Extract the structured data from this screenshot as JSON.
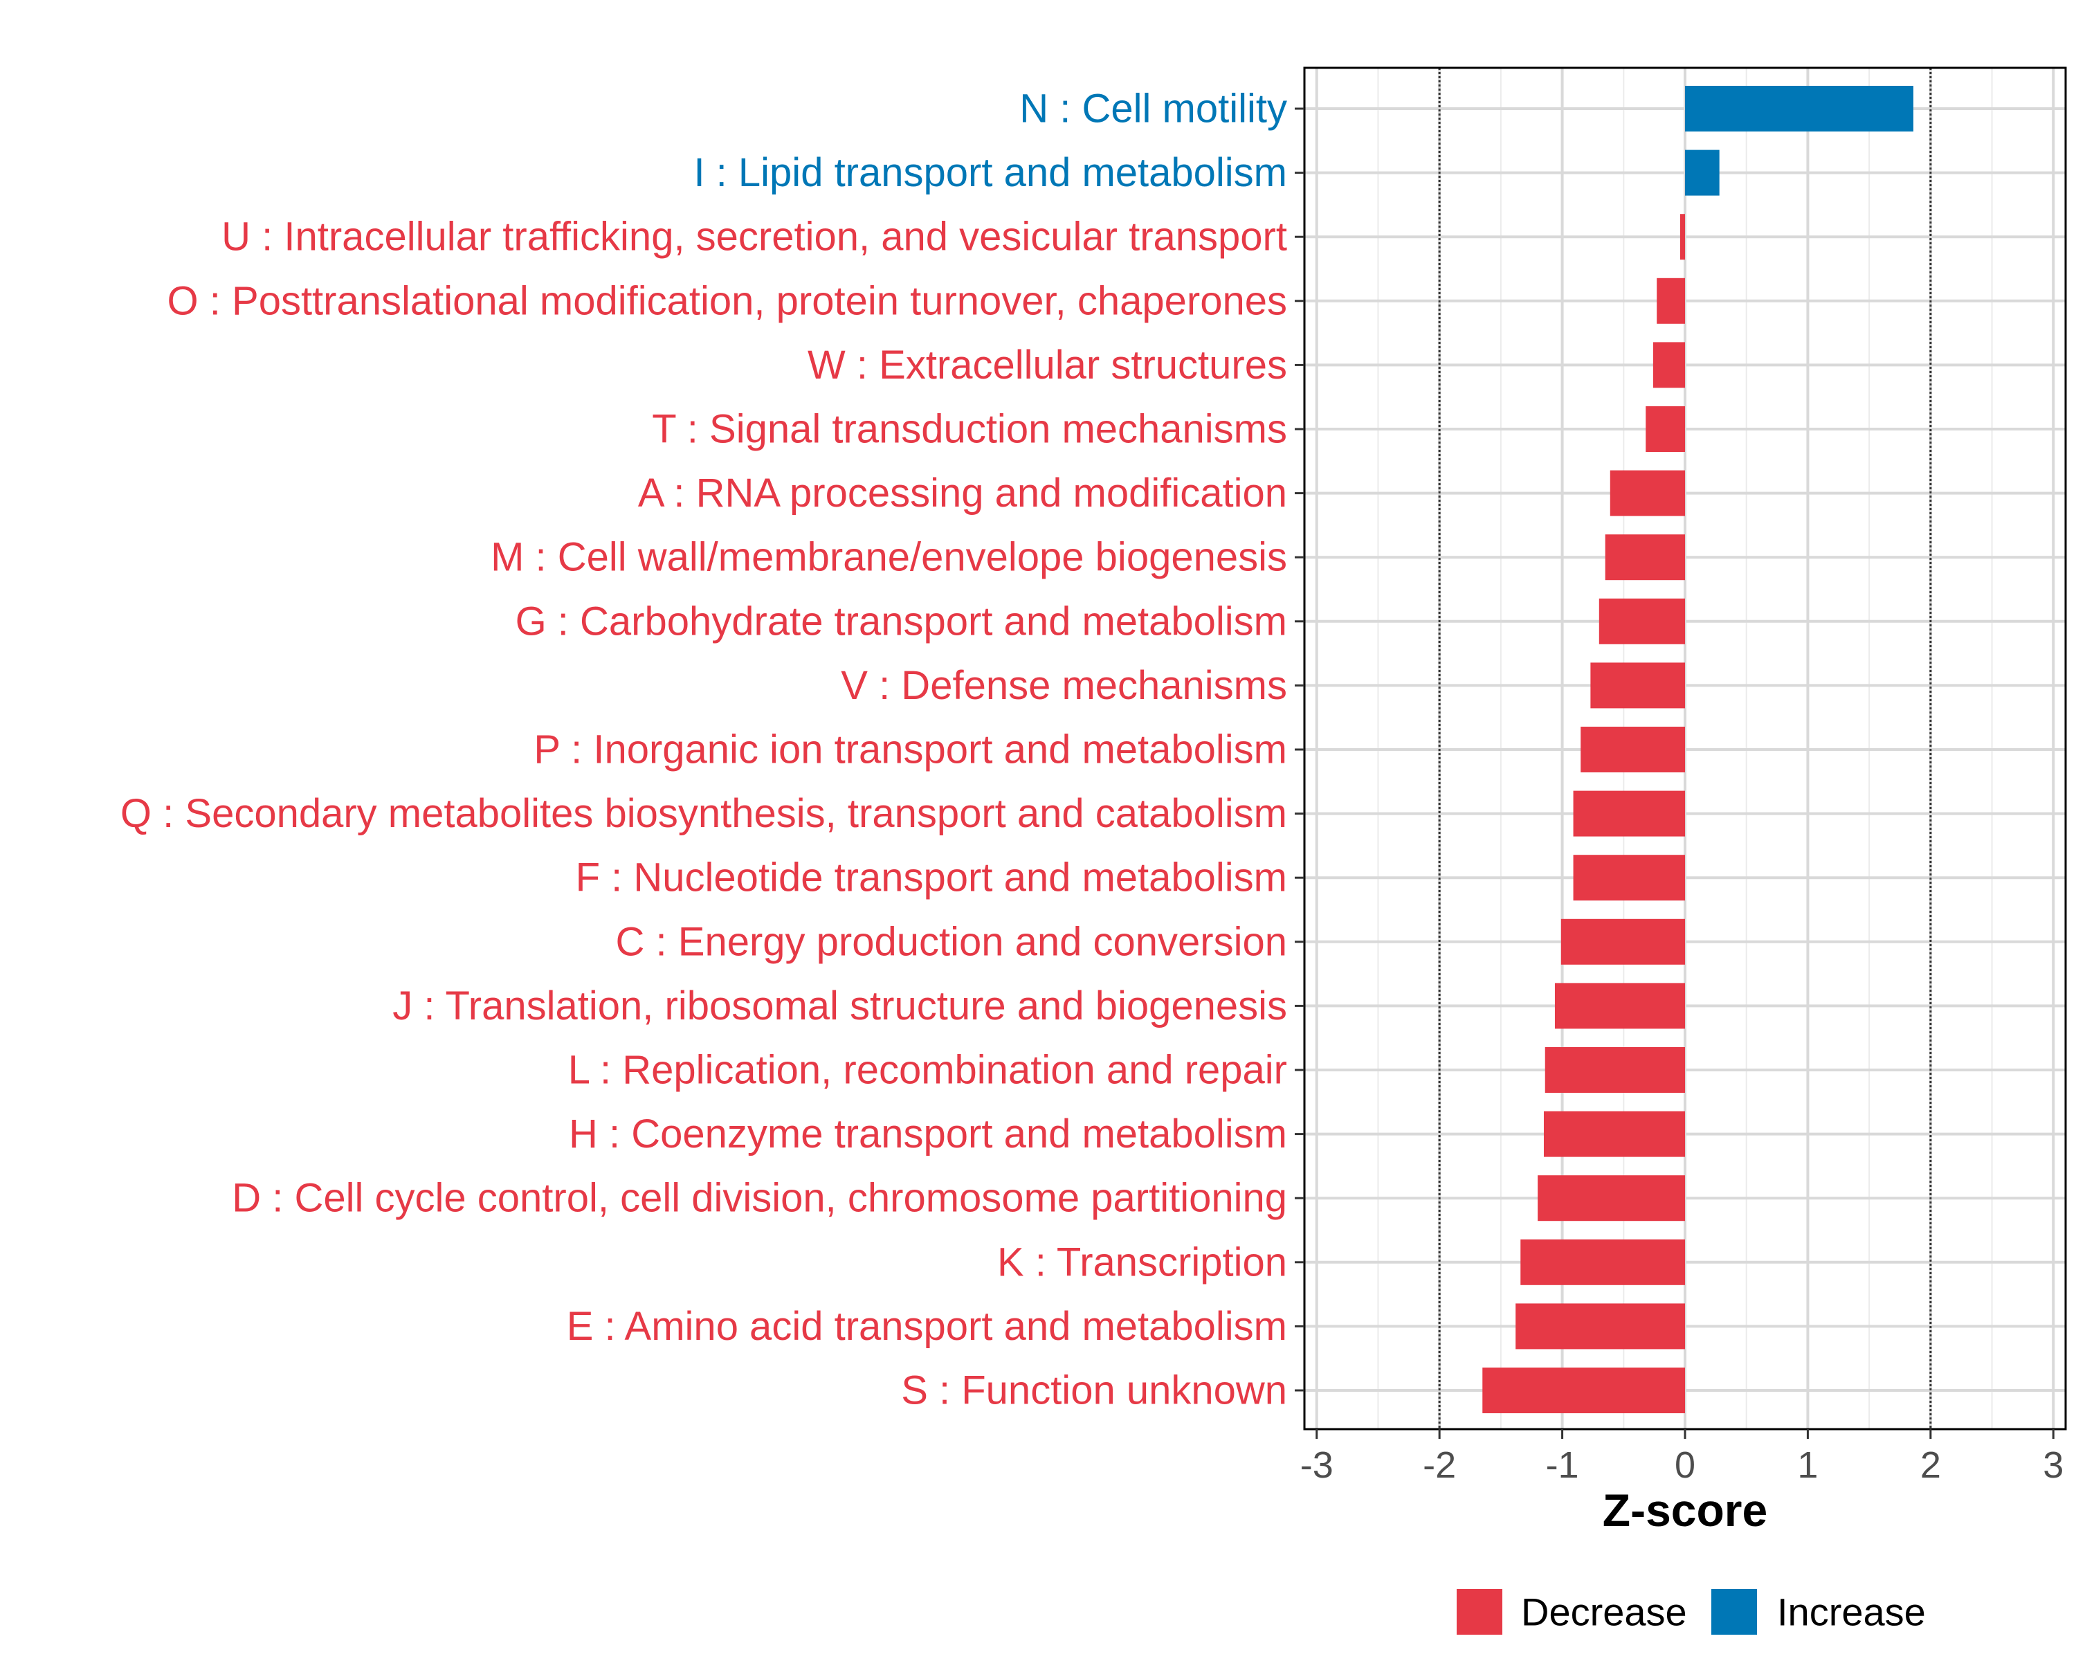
{
  "chart_data": {
    "type": "bar",
    "orientation": "horizontal",
    "categories": [
      "N : Cell motility",
      "I : Lipid transport and metabolism",
      "U : Intracellular trafficking, secretion, and vesicular transport",
      "O : Posttranslational modification, protein turnover, chaperones",
      "W : Extracellular structures",
      "T : Signal transduction mechanisms",
      "A : RNA processing and modification",
      "M : Cell wall/membrane/envelope biogenesis",
      "G : Carbohydrate transport and metabolism",
      "V : Defense mechanisms",
      "P : Inorganic ion transport and metabolism",
      "Q : Secondary metabolites biosynthesis, transport and catabolism",
      "F : Nucleotide transport and metabolism",
      "C : Energy production and conversion",
      "J : Translation, ribosomal structure and biogenesis",
      "L : Replication, recombination and repair",
      "H : Coenzyme transport and metabolism",
      "D : Cell cycle control, cell division, chromosome partitioning",
      "K : Transcription",
      "E : Amino acid transport and metabolism",
      "S : Function unknown"
    ],
    "values": [
      1.86,
      0.28,
      -0.04,
      -0.23,
      -0.26,
      -0.32,
      -0.61,
      -0.65,
      -0.7,
      -0.77,
      -0.85,
      -0.91,
      -0.91,
      -1.01,
      -1.06,
      -1.14,
      -1.15,
      -1.2,
      -1.34,
      -1.38,
      -1.65
    ],
    "groups": [
      "Increase",
      "Increase",
      "Decrease",
      "Decrease",
      "Decrease",
      "Decrease",
      "Decrease",
      "Decrease",
      "Decrease",
      "Decrease",
      "Decrease",
      "Decrease",
      "Decrease",
      "Decrease",
      "Decrease",
      "Decrease",
      "Decrease",
      "Decrease",
      "Decrease",
      "Decrease",
      "Decrease"
    ],
    "xlabel": "Z-score",
    "ylabel": "",
    "xlim": [
      -3.1,
      3.1
    ],
    "xticks": [
      -3,
      -2,
      -1,
      0,
      1,
      2,
      3
    ],
    "xtick_labels": [
      "-3",
      "-2",
      "-1",
      "0",
      "1",
      "2",
      "3"
    ],
    "reference_lines": [
      -2,
      2
    ],
    "grid": true,
    "legend": {
      "position": "bottom",
      "entries": [
        {
          "label": "Decrease",
          "color": "#e63946"
        },
        {
          "label": "Increase",
          "color": "#0077b6"
        }
      ]
    }
  }
}
